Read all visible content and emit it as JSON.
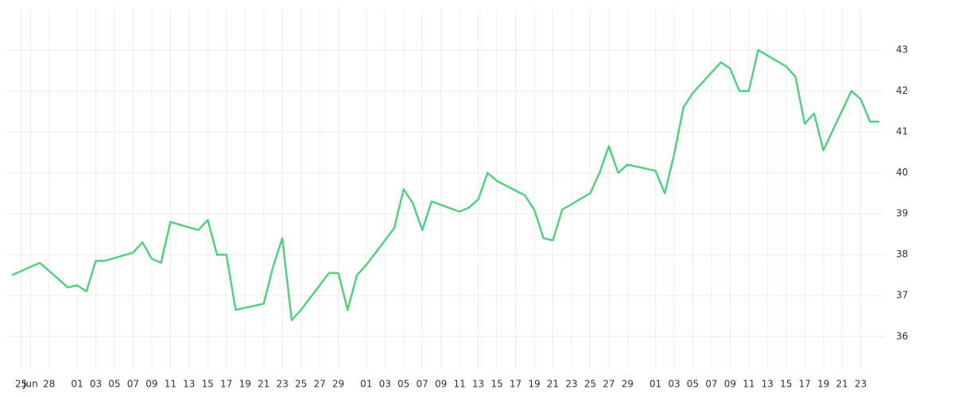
{
  "chart_data": {
    "type": "line",
    "x": [
      -1,
      2,
      5,
      6,
      7,
      8,
      9,
      12,
      13,
      14,
      15,
      16,
      19,
      20,
      21,
      22,
      23,
      26,
      27,
      28,
      29,
      30,
      33,
      34,
      35,
      36,
      37,
      40,
      41,
      42,
      43,
      44,
      47,
      48,
      49,
      50,
      51,
      54,
      55,
      56,
      57,
      58,
      61,
      62,
      63,
      64,
      65,
      68,
      69,
      70,
      71,
      72,
      75,
      76,
      77,
      78,
      79,
      82,
      83,
      84,
      85,
      86,
      89,
      90,
      91,
      92
    ],
    "series": [
      {
        "color": "#52d07f",
        "values": [
          37.5,
          37.8,
          37.2,
          37.25,
          37.1,
          37.85,
          37.85,
          38.05,
          38.3,
          37.9,
          37.8,
          38.8,
          38.6,
          38.85,
          38.0,
          38.0,
          36.65,
          36.8,
          37.7,
          38.4,
          36.4,
          36.65,
          37.55,
          37.55,
          36.65,
          37.5,
          37.75,
          38.65,
          39.6,
          39.25,
          38.6,
          39.3,
          39.05,
          39.15,
          39.35,
          40.0,
          39.8,
          39.45,
          39.1,
          38.4,
          38.35,
          39.1,
          39.5,
          40.0,
          40.65,
          40.0,
          40.2,
          40.05,
          39.5,
          40.45,
          41.6,
          41.95,
          42.7,
          42.55,
          42.0,
          42.0,
          43.0,
          42.6,
          42.35,
          41.2,
          41.45,
          40.55,
          42.0,
          41.8,
          41.25,
          41.25
        ]
      }
    ],
    "xlim": [
      -1.5,
      92.5
    ],
    "xticks": [
      {
        "value": 0,
        "label": "25"
      },
      {
        "value": 1,
        "label": "Jun"
      },
      {
        "value": 3,
        "label": "28"
      },
      {
        "value": 6,
        "label": "01"
      },
      {
        "value": 8,
        "label": "03"
      },
      {
        "value": 10,
        "label": "05"
      },
      {
        "value": 12,
        "label": "07"
      },
      {
        "value": 14,
        "label": "09"
      },
      {
        "value": 16,
        "label": "11"
      },
      {
        "value": 18,
        "label": "13"
      },
      {
        "value": 20,
        "label": "15"
      },
      {
        "value": 22,
        "label": "17"
      },
      {
        "value": 24,
        "label": "19"
      },
      {
        "value": 26,
        "label": "21"
      },
      {
        "value": 28,
        "label": "23"
      },
      {
        "value": 30,
        "label": "25"
      },
      {
        "value": 32,
        "label": "27"
      },
      {
        "value": 34,
        "label": "29"
      },
      {
        "value": 37,
        "label": "01"
      },
      {
        "value": 39,
        "label": "03"
      },
      {
        "value": 41,
        "label": "05"
      },
      {
        "value": 43,
        "label": "07"
      },
      {
        "value": 45,
        "label": "09"
      },
      {
        "value": 47,
        "label": "11"
      },
      {
        "value": 49,
        "label": "13"
      },
      {
        "value": 51,
        "label": "15"
      },
      {
        "value": 53,
        "label": "17"
      },
      {
        "value": 55,
        "label": "19"
      },
      {
        "value": 57,
        "label": "21"
      },
      {
        "value": 59,
        "label": "23"
      },
      {
        "value": 61,
        "label": "25"
      },
      {
        "value": 63,
        "label": "27"
      },
      {
        "value": 65,
        "label": "29"
      },
      {
        "value": 68,
        "label": "01"
      },
      {
        "value": 70,
        "label": "03"
      },
      {
        "value": 72,
        "label": "05"
      },
      {
        "value": 74,
        "label": "07"
      },
      {
        "value": 76,
        "label": "09"
      },
      {
        "value": 78,
        "label": "11"
      },
      {
        "value": 80,
        "label": "13"
      },
      {
        "value": 82,
        "label": "15"
      },
      {
        "value": 84,
        "label": "17"
      },
      {
        "value": 86,
        "label": "19"
      },
      {
        "value": 88,
        "label": "21"
      },
      {
        "value": 90,
        "label": "23"
      }
    ],
    "ylim": [
      35.2,
      44.03
    ],
    "yticks": [
      36,
      37,
      38,
      39,
      40,
      41,
      42,
      43
    ],
    "grid": true
  }
}
